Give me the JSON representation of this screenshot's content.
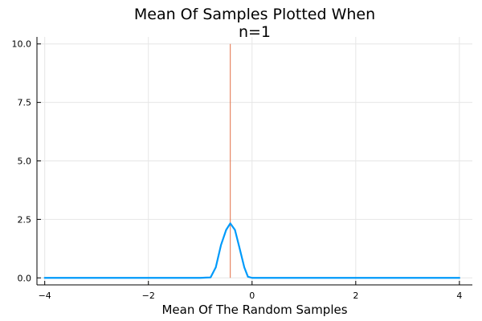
{
  "chart_data": {
    "type": "line",
    "title": "Mean Of Samples Plotted When\nn=1",
    "xlabel": "Mean Of The Random Samples",
    "ylabel": "",
    "xlim": [
      -4.15,
      4.25
    ],
    "ylim": [
      -0.3,
      10.3
    ],
    "x_ticks": [
      -4,
      -2,
      0,
      2,
      4
    ],
    "x_tick_labels": [
      "−4",
      "−2",
      "0",
      "2",
      "4"
    ],
    "y_ticks": [
      0,
      2.5,
      5,
      7.5,
      10
    ],
    "y_tick_labels": [
      "0.0",
      "2.5",
      "5.0",
      "7.5",
      "10.0"
    ],
    "grid": true,
    "legend": "none",
    "series": [
      {
        "color": "#009AFA",
        "x": [
          -4,
          -3.5,
          -3,
          -2.5,
          -2,
          -1.5,
          -1,
          -0.8,
          -0.7,
          -0.6,
          -0.5,
          -0.42,
          -0.33,
          -0.25,
          -0.15,
          -0.08,
          0,
          0.5,
          1,
          1.5,
          2,
          2.5,
          3,
          3.5,
          4
        ],
        "y": [
          0,
          0,
          0,
          0,
          0,
          0,
          0,
          0.02,
          0.45,
          1.4,
          2.05,
          2.33,
          2.05,
          1.35,
          0.45,
          0.05,
          0,
          0,
          0,
          0,
          0,
          0,
          0,
          0,
          0
        ]
      }
    ],
    "vlines": [
      {
        "x": -0.42,
        "y_range": [
          0,
          10
        ],
        "color": "#E26F46"
      }
    ]
  }
}
